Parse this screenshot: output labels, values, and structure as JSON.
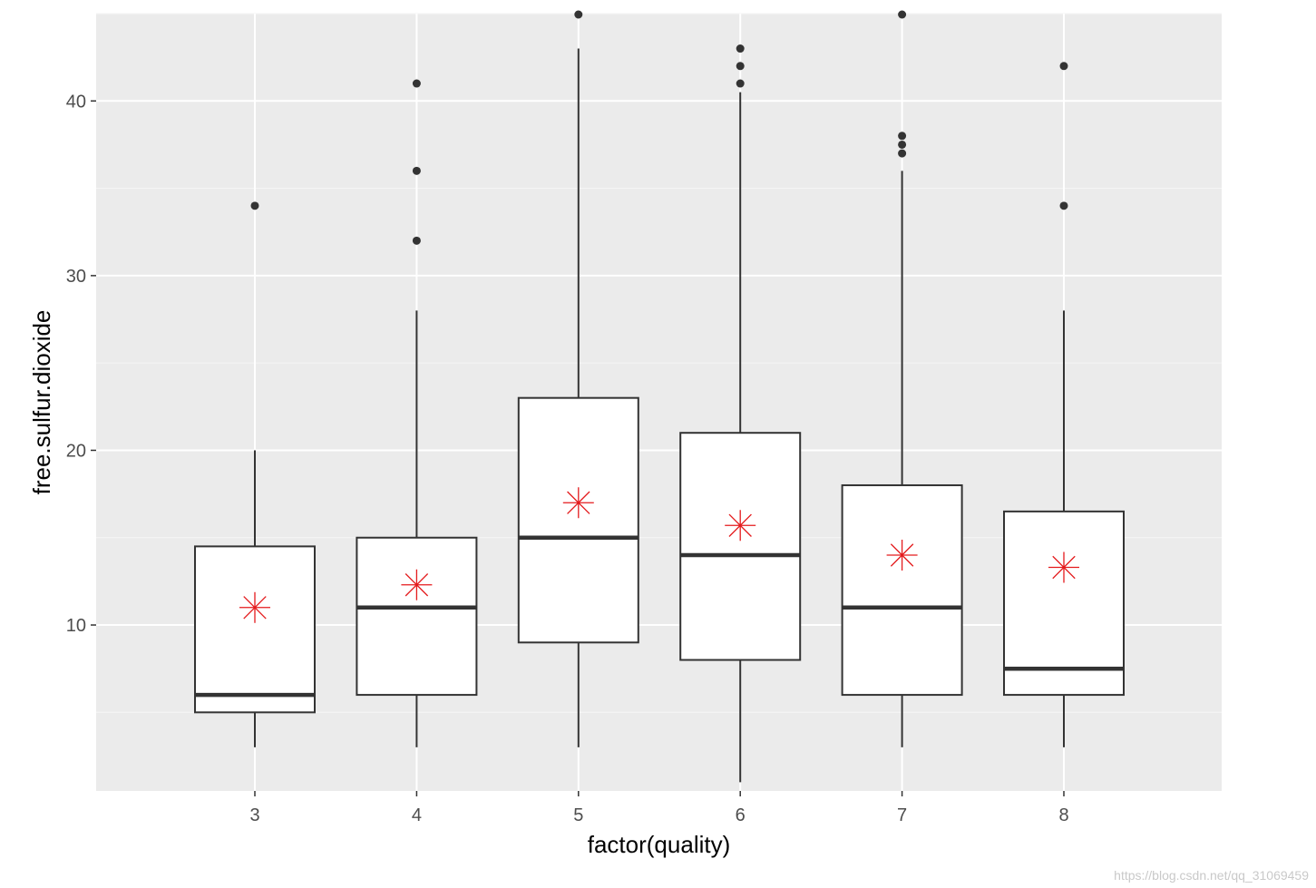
{
  "chart_data": {
    "type": "boxplot",
    "title": "",
    "xlabel": "factor(quality)",
    "ylabel": "free.sulfur.dioxide",
    "ylim": [
      0.5,
      45
    ],
    "y_ticks": [
      10,
      20,
      30,
      40
    ],
    "categories": [
      "3",
      "4",
      "5",
      "6",
      "7",
      "8"
    ],
    "boxes": [
      {
        "category": "3",
        "lower_whisker": 3,
        "q1": 5,
        "median": 6,
        "q3": 14.5,
        "upper_whisker": 20,
        "mean": 11,
        "outliers": [
          34
        ]
      },
      {
        "category": "4",
        "lower_whisker": 3,
        "q1": 6,
        "median": 11,
        "q3": 15,
        "upper_whisker": 28,
        "mean": 12.3,
        "outliers": [
          32,
          36,
          41
        ]
      },
      {
        "category": "5",
        "lower_whisker": 3,
        "q1": 9,
        "median": 15,
        "q3": 23,
        "upper_whisker": 43,
        "mean": 17,
        "outliers": [
          45
        ]
      },
      {
        "category": "6",
        "lower_whisker": 1,
        "q1": 8,
        "median": 14,
        "q3": 21,
        "upper_whisker": 40.5,
        "mean": 15.7,
        "outliers": [
          41,
          42,
          43
        ]
      },
      {
        "category": "7",
        "lower_whisker": 3,
        "q1": 6,
        "median": 11,
        "q3": 18,
        "upper_whisker": 36,
        "mean": 14,
        "outliers": [
          37,
          37.5,
          38,
          45
        ]
      },
      {
        "category": "8",
        "lower_whisker": 3,
        "q1": 6,
        "median": 7.5,
        "q3": 16.5,
        "upper_whisker": 28,
        "mean": 13.3,
        "outliers": [
          34,
          42
        ]
      }
    ],
    "grid": true,
    "colors": {
      "panel_bg": "#ebebeb",
      "grid_major": "#ffffff",
      "grid_minor": "#f5f5f5",
      "box_stroke": "#333333",
      "box_fill": "#ffffff",
      "mean_marker": "#e41a1c",
      "axis_text": "#4d4d4d",
      "axis_title": "#000000"
    }
  },
  "watermark": "https://blog.csdn.net/qq_31069459"
}
